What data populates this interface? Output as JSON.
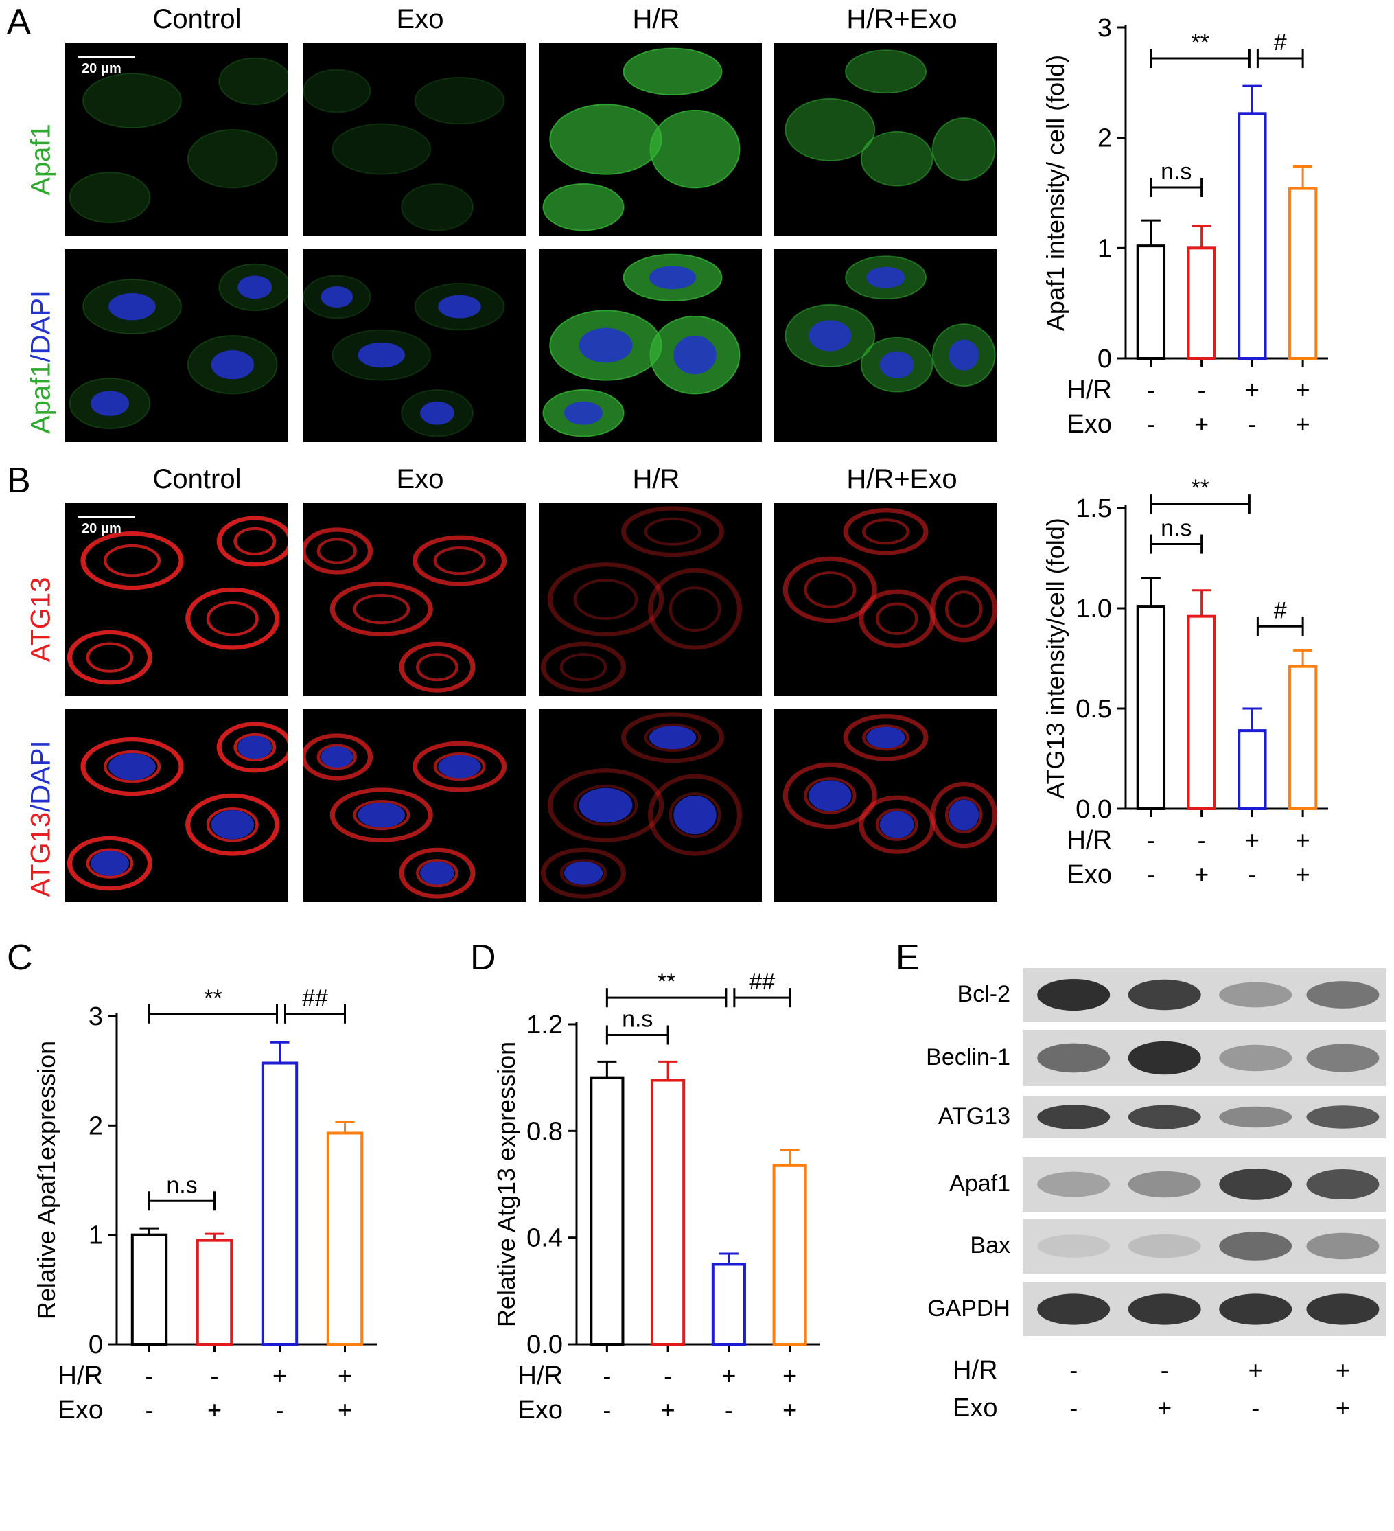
{
  "panels": {
    "A": {
      "letter": "A",
      "columns": [
        "Control",
        "Exo",
        "H/R",
        "H/R+Exo"
      ],
      "row1_label": "Apaf1",
      "row2_label_a": "Apaf1",
      "row2_label_b": "/DAPI",
      "scale_label": "20 μm",
      "stain_color": "#33b333",
      "nuclear_color": "#2233cc"
    },
    "B": {
      "letter": "B",
      "columns": [
        "Control",
        "Exo",
        "H/R",
        "H/R+Exo"
      ],
      "row1_label": "ATG13",
      "row2_label_a": "ATG13",
      "row2_label_b": "/DAPI",
      "scale_label": "20 μm",
      "stain_color": "#e62020",
      "nuclear_color": "#2233cc"
    },
    "C": {
      "letter": "C"
    },
    "D": {
      "letter": "D"
    },
    "E": {
      "letter": "E"
    }
  },
  "condition_rows": {
    "hr_label": "H/R",
    "exo_label": "Exo",
    "hr_signs": [
      "-",
      "-",
      "+",
      "+"
    ],
    "exo_signs": [
      "-",
      "+",
      "-",
      "+"
    ]
  },
  "series_colors": [
    "#000000",
    "#e31a1c",
    "#1c1cd6",
    "#ff7f0e"
  ],
  "chart_data": [
    {
      "id": "A",
      "type": "bar",
      "ylabel": "Apaf1 intensity/ cell (fold)",
      "ylim": [
        0,
        3
      ],
      "yticks": [
        "0",
        "1",
        "2",
        "3"
      ],
      "ytick_values": [
        0,
        1,
        2,
        3
      ],
      "values": [
        1.02,
        1.0,
        2.22,
        1.54
      ],
      "errors": [
        0.23,
        0.2,
        0.25,
        0.2
      ],
      "annotations": [
        {
          "from": 0,
          "to": 2,
          "text": "**",
          "y": 2.72
        },
        {
          "from": 2,
          "to": 3,
          "text": "#",
          "y": 2.72
        },
        {
          "from": 0,
          "to": 1,
          "text": "n.s",
          "y": 1.55
        }
      ]
    },
    {
      "id": "B",
      "type": "bar",
      "ylabel": "ATG13 intensity/cell (fold)",
      "ylim": [
        0,
        1.5
      ],
      "yticks": [
        "0.0",
        "0.5",
        "1.0",
        "1.5"
      ],
      "ytick_values": [
        0,
        0.5,
        1.0,
        1.5
      ],
      "values": [
        1.01,
        0.96,
        0.39,
        0.71
      ],
      "errors": [
        0.14,
        0.13,
        0.11,
        0.08
      ],
      "annotations": [
        {
          "from": 0,
          "to": 2,
          "text": "**",
          "y": 1.52
        },
        {
          "from": 0,
          "to": 1,
          "text": "n.s",
          "y": 1.32
        },
        {
          "from": 2,
          "to": 3,
          "text": "#",
          "y": 0.91
        }
      ]
    },
    {
      "id": "C",
      "type": "bar",
      "ylabel": "Relative Apaf1expression",
      "ylim": [
        0,
        3
      ],
      "yticks": [
        "0",
        "1",
        "2",
        "3"
      ],
      "ytick_values": [
        0,
        1,
        2,
        3
      ],
      "values": [
        1.0,
        0.95,
        2.57,
        1.93
      ],
      "errors": [
        0.06,
        0.06,
        0.19,
        0.1
      ],
      "annotations": [
        {
          "from": 0,
          "to": 2,
          "text": "**",
          "y": 3.02
        },
        {
          "from": 2,
          "to": 3,
          "text": "##",
          "y": 3.02
        },
        {
          "from": 0,
          "to": 1,
          "text": "n.s",
          "y": 1.31
        }
      ]
    },
    {
      "id": "D",
      "type": "bar",
      "ylabel": "Relative Atg13 expression",
      "ylim": [
        0,
        1.2
      ],
      "yticks": [
        "0.0",
        "0.4",
        "0.8",
        "1.2"
      ],
      "ytick_values": [
        0,
        0.4,
        0.8,
        1.2
      ],
      "values": [
        1.0,
        0.99,
        0.3,
        0.67
      ],
      "errors": [
        0.06,
        0.07,
        0.04,
        0.06
      ],
      "annotations": [
        {
          "from": 0,
          "to": 2,
          "text": "**",
          "y": 1.3
        },
        {
          "from": 2,
          "to": 3,
          "text": "##",
          "y": 1.3
        },
        {
          "from": 0,
          "to": 1,
          "text": "n.s",
          "y": 1.16
        }
      ]
    }
  ],
  "blot": {
    "proteins": [
      "Bcl-2",
      "Beclin-1",
      "ATG13",
      "Apaf1",
      "Bax",
      "GAPDH"
    ],
    "intensity": [
      [
        0.95,
        0.85,
        0.35,
        0.55
      ],
      [
        0.6,
        0.95,
        0.35,
        0.5
      ],
      [
        0.85,
        0.8,
        0.45,
        0.7
      ],
      [
        0.3,
        0.4,
        0.85,
        0.75
      ],
      [
        0.1,
        0.15,
        0.6,
        0.4
      ],
      [
        0.9,
        0.9,
        0.9,
        0.9
      ]
    ]
  }
}
